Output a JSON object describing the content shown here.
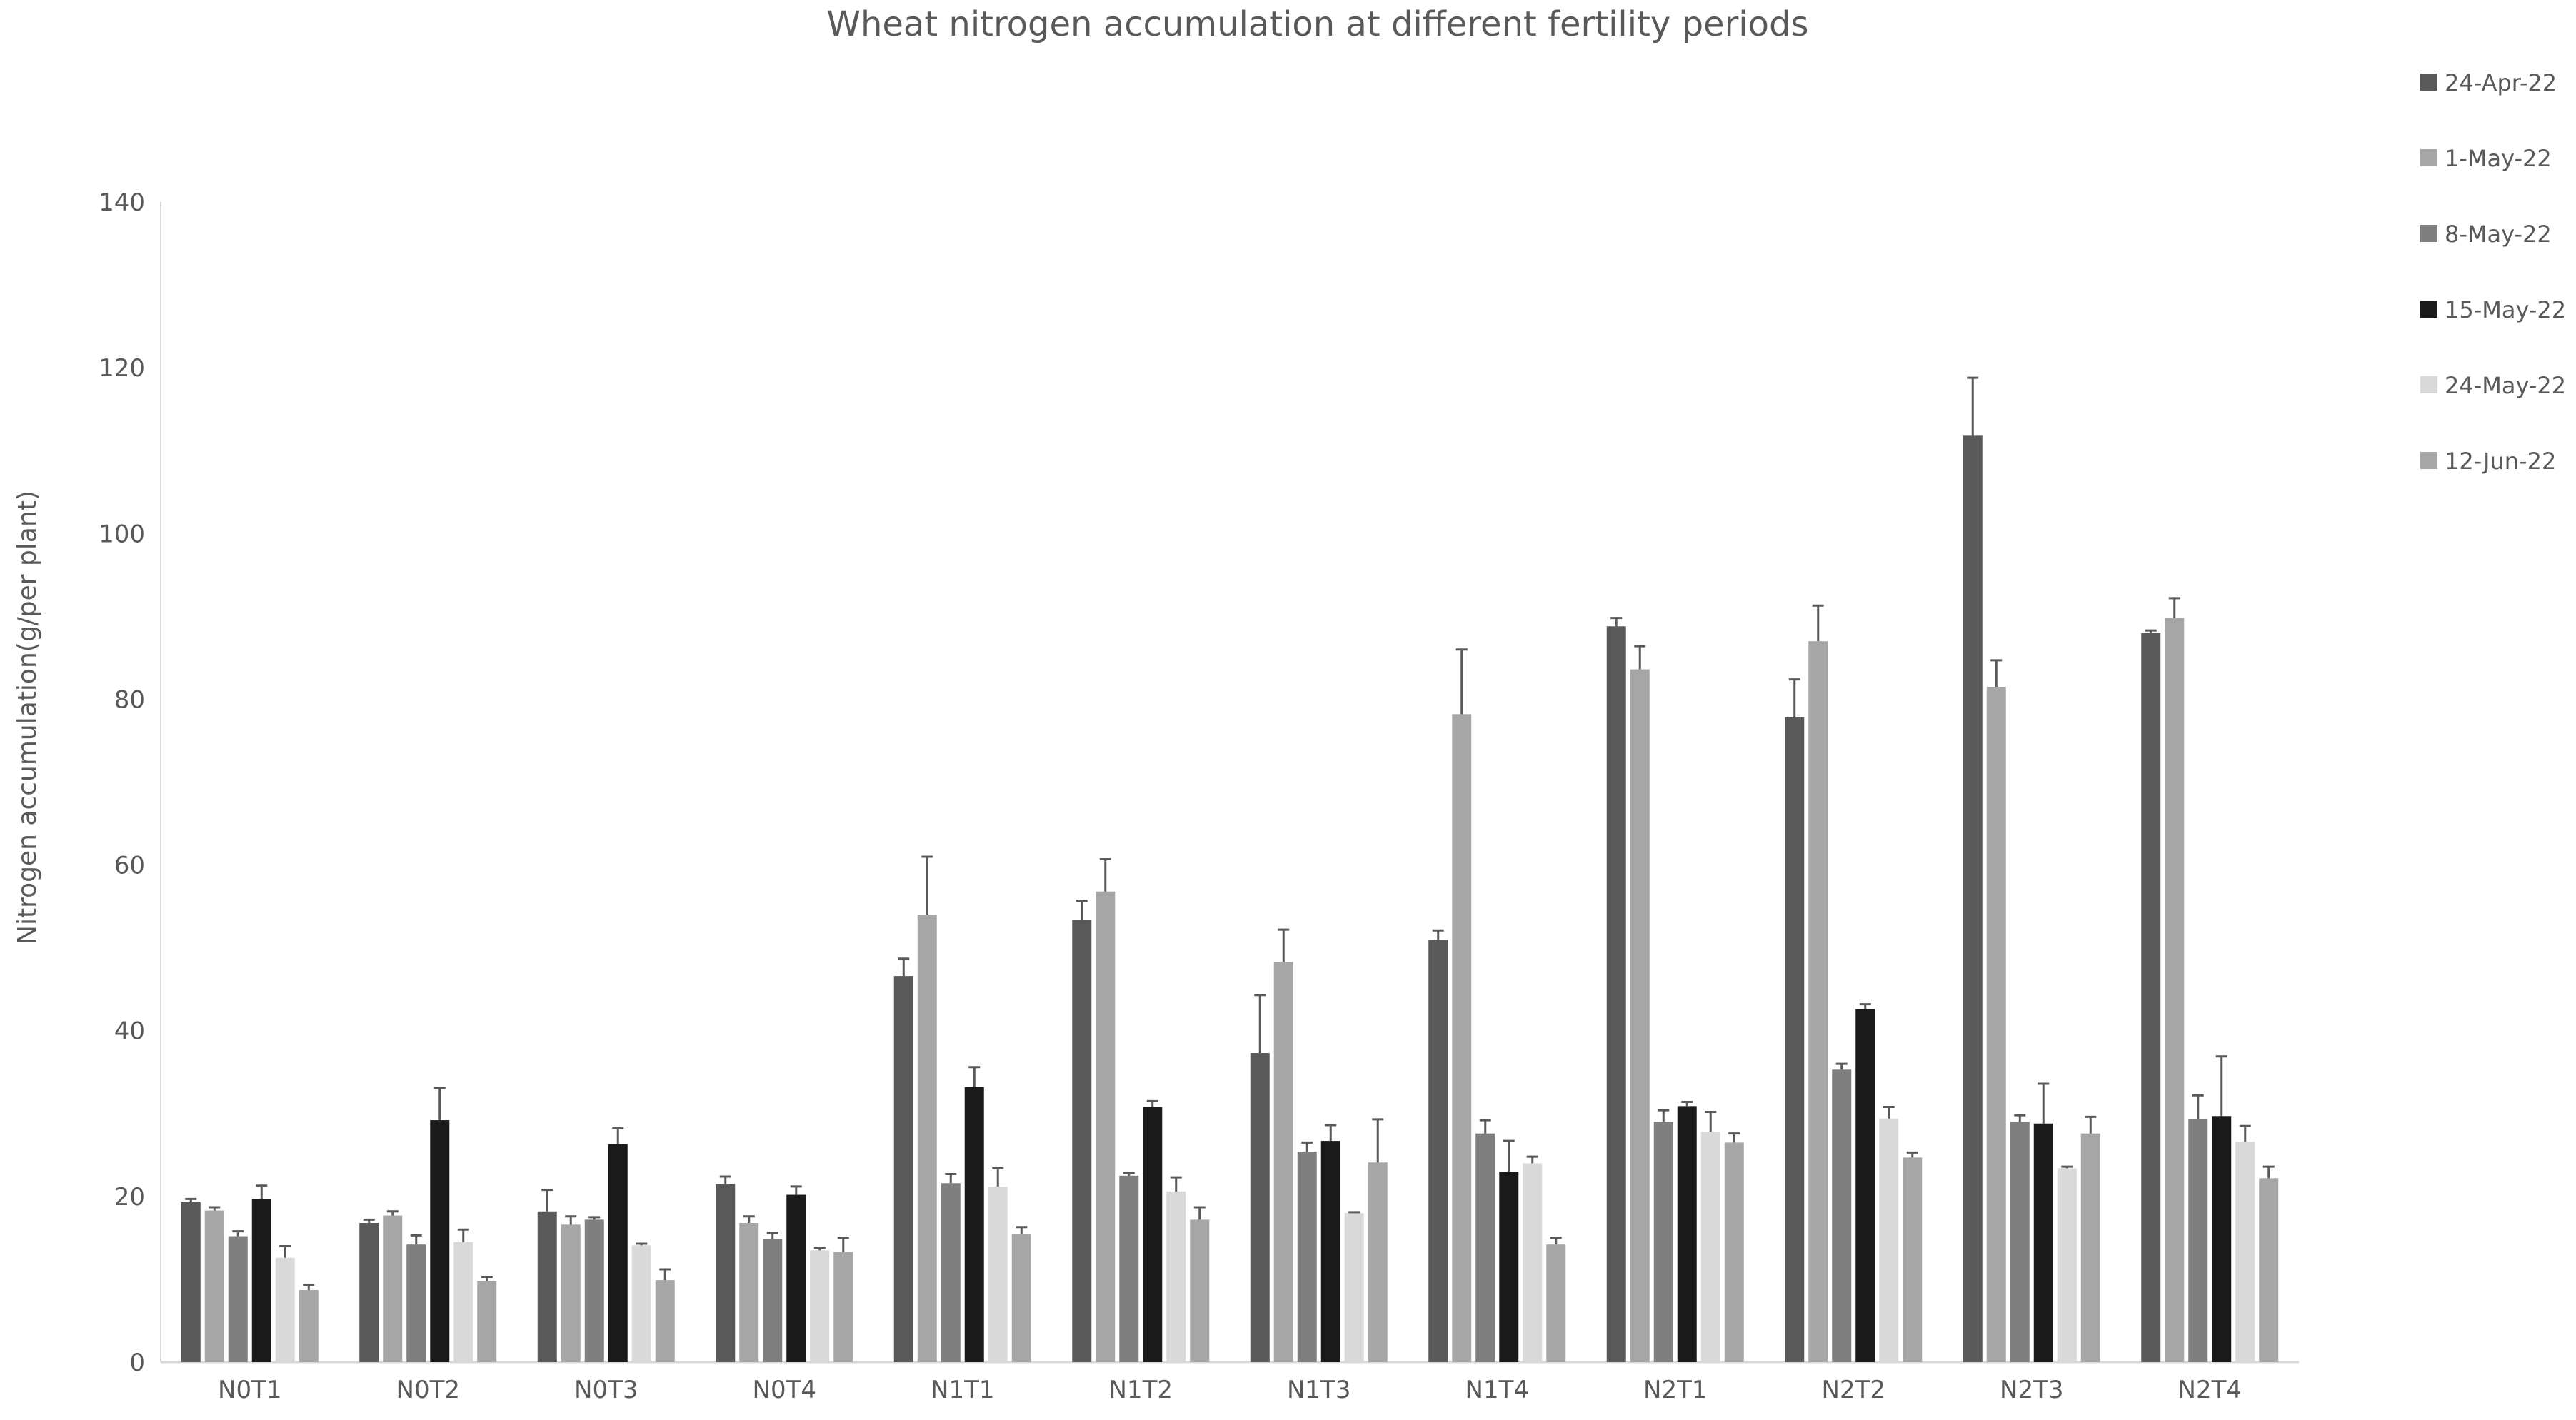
{
  "chart_data": {
    "type": "bar",
    "title": "Wheat nitrogen accumulation at different fertility periods",
    "ylabel": "Nitrogen accumulation(g/per plant)",
    "xlabel": "",
    "ylim": [
      0,
      140
    ],
    "yticks": [
      0,
      20,
      40,
      60,
      80,
      100,
      120,
      140
    ],
    "grid": false,
    "legend_position": "right",
    "error_bars": true,
    "categories": [
      "N0T1",
      "N0T2",
      "N0T3",
      "N0T4",
      "N1T1",
      "N1T2",
      "N1T3",
      "N1T4",
      "N2T1",
      "N2T2",
      "N2T3",
      "N2T4"
    ],
    "series": [
      {
        "name": "24-Apr-22",
        "color": "#595959",
        "values": [
          19.3,
          16.8,
          18.2,
          21.5,
          46.6,
          53.4,
          37.3,
          51.0,
          88.8,
          77.8,
          111.8,
          88.0
        ],
        "errors": [
          0.4,
          0.4,
          2.6,
          0.9,
          2.1,
          2.3,
          7.0,
          1.1,
          1.0,
          4.6,
          7.0,
          0.3
        ]
      },
      {
        "name": "1-May-22",
        "color": "#a6a6a6",
        "values": [
          18.3,
          17.7,
          16.6,
          16.8,
          54.0,
          56.8,
          48.3,
          78.2,
          83.6,
          87.0,
          81.5,
          89.8
        ],
        "errors": [
          0.4,
          0.5,
          1.0,
          0.8,
          7.0,
          3.9,
          3.9,
          7.8,
          2.8,
          4.3,
          3.2,
          2.4
        ]
      },
      {
        "name": "8-May-22",
        "color": "#7f7f7f",
        "values": [
          15.2,
          14.2,
          17.2,
          14.9,
          21.6,
          22.5,
          25.4,
          27.6,
          29.0,
          35.3,
          29.0,
          29.3
        ],
        "errors": [
          0.6,
          1.1,
          0.3,
          0.7,
          1.1,
          0.3,
          1.1,
          1.6,
          1.4,
          0.7,
          0.8,
          2.9
        ]
      },
      {
        "name": "15-May-22",
        "color": "#1a1a1a",
        "values": [
          19.7,
          29.2,
          26.3,
          20.2,
          33.2,
          30.8,
          26.7,
          23.0,
          30.9,
          42.6,
          28.8,
          29.7
        ],
        "errors": [
          1.6,
          3.9,
          2.0,
          1.0,
          2.4,
          0.7,
          1.9,
          3.7,
          0.5,
          0.6,
          4.8,
          7.2
        ]
      },
      {
        "name": "24-May-22",
        "color": "#d9d9d9",
        "values": [
          12.6,
          14.5,
          14.1,
          13.5,
          21.2,
          20.6,
          18.0,
          24.0,
          27.8,
          29.4,
          23.4,
          26.6
        ],
        "errors": [
          1.4,
          1.5,
          0.2,
          0.3,
          2.2,
          1.7,
          0.1,
          0.8,
          2.4,
          1.4,
          0.2,
          1.9
        ]
      },
      {
        "name": "12-Jun-22",
        "color": "#a6a6a6",
        "values": [
          8.7,
          9.8,
          9.9,
          13.3,
          15.5,
          17.2,
          24.1,
          14.2,
          26.5,
          24.7,
          27.6,
          22.2
        ],
        "errors": [
          0.6,
          0.5,
          1.3,
          1.7,
          0.8,
          1.5,
          5.2,
          0.8,
          1.1,
          0.6,
          2.0,
          1.4
        ]
      }
    ]
  }
}
